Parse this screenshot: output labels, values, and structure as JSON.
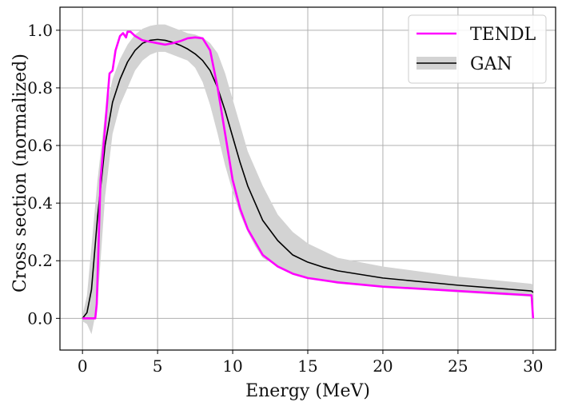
{
  "chart_data": {
    "type": "line",
    "title": "",
    "xlabel": "Energy (MeV)",
    "ylabel": "Cross section (normalized)",
    "xlim": [
      -1.5,
      31.5
    ],
    "ylim": [
      -0.11,
      1.08
    ],
    "xticks": [
      0,
      5,
      10,
      15,
      20,
      25,
      30
    ],
    "yticks": [
      0.0,
      0.2,
      0.4,
      0.6,
      0.8,
      1.0
    ],
    "xtick_labels": [
      "0",
      "5",
      "10",
      "15",
      "20",
      "25",
      "30"
    ],
    "ytick_labels": [
      "0.0",
      "0.2",
      "0.4",
      "0.6",
      "0.8",
      "1.0"
    ],
    "grid": true,
    "legend_position": "top-right",
    "legend": [
      "TENDL",
      "GAN"
    ],
    "series": [
      {
        "name": "TENDL",
        "color": "#ff00ff",
        "x": [
          0,
          0.5,
          0.85,
          0.95,
          1.2,
          1.5,
          1.8,
          2.0,
          2.2,
          2.5,
          2.7,
          2.9,
          3.0,
          3.2,
          3.5,
          4,
          4.5,
          5,
          5.5,
          6,
          6.5,
          7,
          7.5,
          8,
          8.5,
          9,
          9.5,
          10,
          10.5,
          11,
          12,
          13,
          14,
          15,
          17,
          20,
          25,
          29.9,
          30
        ],
        "y": [
          0,
          0,
          0,
          0.05,
          0.48,
          0.66,
          0.85,
          0.86,
          0.93,
          0.98,
          0.99,
          0.975,
          0.995,
          0.995,
          0.98,
          0.965,
          0.96,
          0.955,
          0.95,
          0.955,
          0.962,
          0.972,
          0.975,
          0.972,
          0.93,
          0.8,
          0.64,
          0.48,
          0.38,
          0.31,
          0.22,
          0.18,
          0.155,
          0.14,
          0.125,
          0.11,
          0.095,
          0.08,
          0.0
        ]
      },
      {
        "name": "GAN",
        "color": "#000000",
        "x": [
          0,
          0.3,
          0.6,
          1.0,
          1.5,
          2.0,
          2.5,
          3,
          3.5,
          4,
          4.5,
          5,
          5.5,
          6,
          6.5,
          7,
          7.5,
          8,
          8.5,
          9,
          9.5,
          10,
          10.5,
          11,
          11.5,
          12,
          13,
          14,
          15,
          16,
          17,
          20,
          25,
          29.9,
          30
        ],
        "y": [
          0,
          0.02,
          0.1,
          0.35,
          0.6,
          0.75,
          0.83,
          0.89,
          0.93,
          0.955,
          0.965,
          0.968,
          0.965,
          0.958,
          0.948,
          0.935,
          0.918,
          0.895,
          0.86,
          0.8,
          0.72,
          0.63,
          0.54,
          0.46,
          0.4,
          0.34,
          0.27,
          0.22,
          0.195,
          0.178,
          0.165,
          0.14,
          0.115,
          0.095,
          0.09
        ]
      }
    ],
    "band": {
      "name": "GAN",
      "color": "#d3d3d3",
      "x": [
        0,
        0.3,
        0.6,
        1.0,
        1.5,
        2.0,
        2.5,
        3,
        3.5,
        4,
        4.5,
        5,
        5.5,
        6,
        6.5,
        7,
        7.5,
        8,
        8.5,
        9,
        9.5,
        10,
        10.5,
        11,
        11.5,
        12,
        13,
        14,
        15,
        16,
        17,
        20,
        25,
        29.9,
        30
      ],
      "lower": [
        -0.01,
        -0.02,
        -0.055,
        0.05,
        0.42,
        0.64,
        0.74,
        0.8,
        0.86,
        0.895,
        0.915,
        0.925,
        0.925,
        0.915,
        0.905,
        0.895,
        0.87,
        0.82,
        0.74,
        0.64,
        0.53,
        0.44,
        0.36,
        0.3,
        0.25,
        0.21,
        0.18,
        0.155,
        0.14,
        0.13,
        0.12,
        0.11,
        0.09,
        0.075,
        0.07
      ],
      "upper": [
        0.01,
        0.08,
        0.25,
        0.48,
        0.71,
        0.83,
        0.9,
        0.95,
        0.985,
        1.005,
        1.015,
        1.02,
        1.02,
        1.01,
        1.0,
        0.99,
        0.985,
        0.975,
        0.955,
        0.92,
        0.85,
        0.76,
        0.67,
        0.58,
        0.52,
        0.46,
        0.36,
        0.3,
        0.26,
        0.235,
        0.21,
        0.18,
        0.145,
        0.12,
        0.115
      ]
    }
  }
}
